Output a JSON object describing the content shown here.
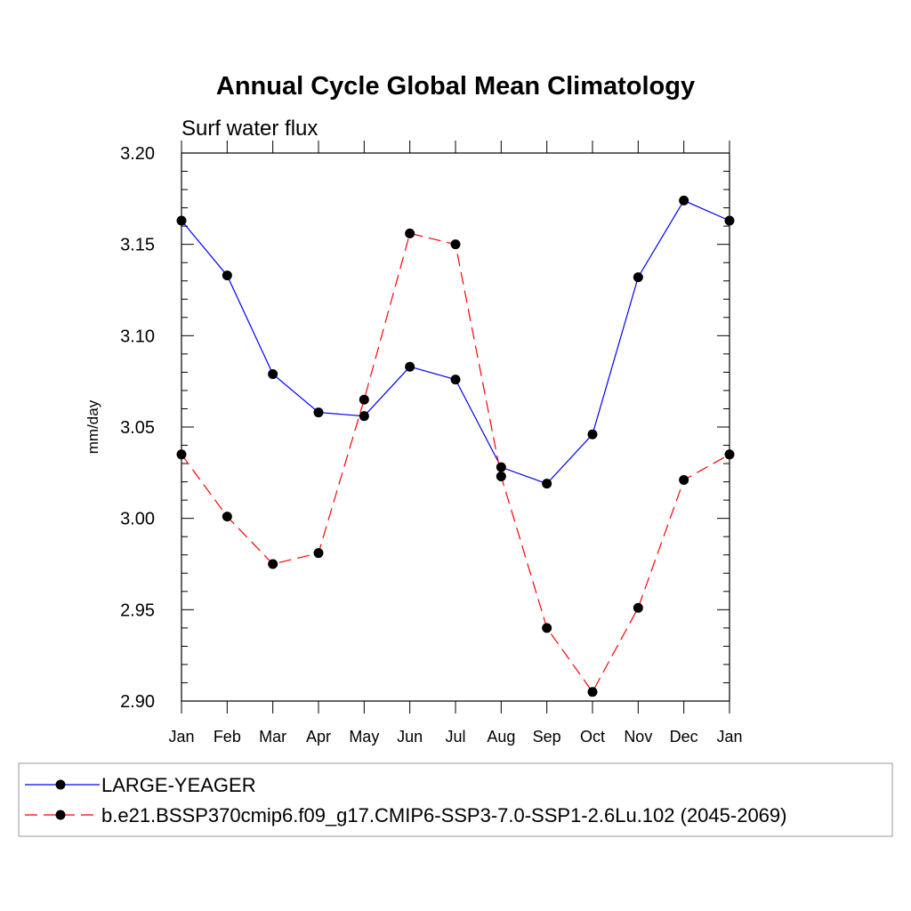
{
  "chart_data": {
    "type": "line",
    "title": "Annual Cycle Global Mean Climatology",
    "subtitle": "Surf water flux",
    "xlabel": "",
    "ylabel": "mm/day",
    "categories": [
      "Jan",
      "Feb",
      "Mar",
      "Apr",
      "May",
      "Jun",
      "Jul",
      "Aug",
      "Sep",
      "Oct",
      "Nov",
      "Dec",
      "Jan"
    ],
    "ylim": [
      2.9,
      3.2
    ],
    "yticks": [
      "2.90",
      "2.95",
      "3.00",
      "3.05",
      "3.10",
      "3.15",
      "3.20"
    ],
    "grid": false,
    "legend_position": "bottom",
    "series": [
      {
        "name": "LARGE-YEAGER",
        "color": "#0000ff",
        "dash": "solid",
        "values": [
          3.163,
          3.133,
          3.079,
          3.058,
          3.056,
          3.083,
          3.076,
          3.028,
          3.019,
          3.046,
          3.132,
          3.174,
          3.163
        ]
      },
      {
        "name": "b.e21.BSSP370cmip6.f09_g17.CMIP6-SSP3-7.0-SSP1-2.6Lu.102 (2045-2069)",
        "color": "#ff0000",
        "dash": "dashed",
        "values": [
          3.035,
          3.001,
          2.975,
          2.981,
          3.065,
          3.156,
          3.15,
          3.023,
          2.94,
          2.905,
          2.951,
          3.021,
          3.035
        ]
      }
    ]
  }
}
